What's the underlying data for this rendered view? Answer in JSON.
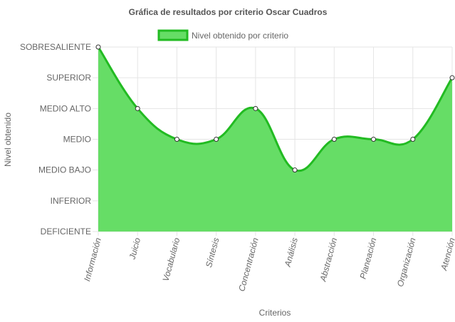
{
  "chart_data": {
    "type": "area",
    "title": "Gráfica de resultados por criterio Oscar Cuadros",
    "xlabel": "Criterios",
    "ylabel": "Nivel obtenido",
    "categories": [
      "Información",
      "Juicio",
      "Vocabulario",
      "Síntesis",
      "Concentración",
      "Análisis",
      "Abstracción",
      "Planeación",
      "Organización",
      "Atención"
    ],
    "y_levels": [
      "DEFICIENTE",
      "INFERIOR",
      "MEDIO BAJO",
      "MEDIO",
      "MEDIO ALTO",
      "SUPERIOR",
      "SOBRESALIENTE"
    ],
    "series": [
      {
        "name": "Nivel obtenido por criterio",
        "values": [
          "SOBRESALIENTE",
          "MEDIO ALTO",
          "MEDIO",
          "MEDIO",
          "MEDIO ALTO",
          "MEDIO BAJO",
          "MEDIO",
          "MEDIO",
          "MEDIO",
          "SUPERIOR"
        ]
      }
    ],
    "legend": "top",
    "grid": true,
    "colors": {
      "fill": "#66dd66",
      "line": "#22bb22",
      "grid": "#e5e5e5",
      "text": "#666666"
    }
  }
}
